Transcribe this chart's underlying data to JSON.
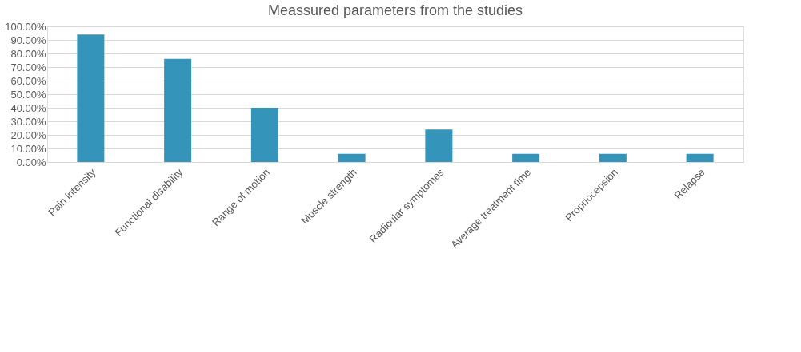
{
  "chart_data": {
    "type": "bar",
    "title": "Meassured  parameters  from the studies",
    "categories": [
      "Pain intensity",
      "Functional disability",
      "Range of motion",
      "Muscle strength",
      "Radicular symptomes",
      "Average treatment time",
      "Propriocepsion",
      "Relapse"
    ],
    "values": [
      94,
      76,
      40,
      6,
      24,
      6,
      6,
      6
    ],
    "color": "#3494ba",
    "ylim": [
      0,
      100
    ],
    "yticks": [
      {
        "value": 0,
        "label": "0.00%"
      },
      {
        "value": 10,
        "label": "10.00%"
      },
      {
        "value": 20,
        "label": "20.00%"
      },
      {
        "value": 30,
        "label": "30.00%"
      },
      {
        "value": 40,
        "label": "40.00%"
      },
      {
        "value": 50,
        "label": "50.00%"
      },
      {
        "value": 60,
        "label": "60.00%"
      },
      {
        "value": 70,
        "label": "70.00%"
      },
      {
        "value": 80,
        "label": "80.00%"
      },
      {
        "value": 90,
        "label": "90.00%"
      },
      {
        "value": 100,
        "label": "100.00%"
      }
    ],
    "grid": "y"
  }
}
